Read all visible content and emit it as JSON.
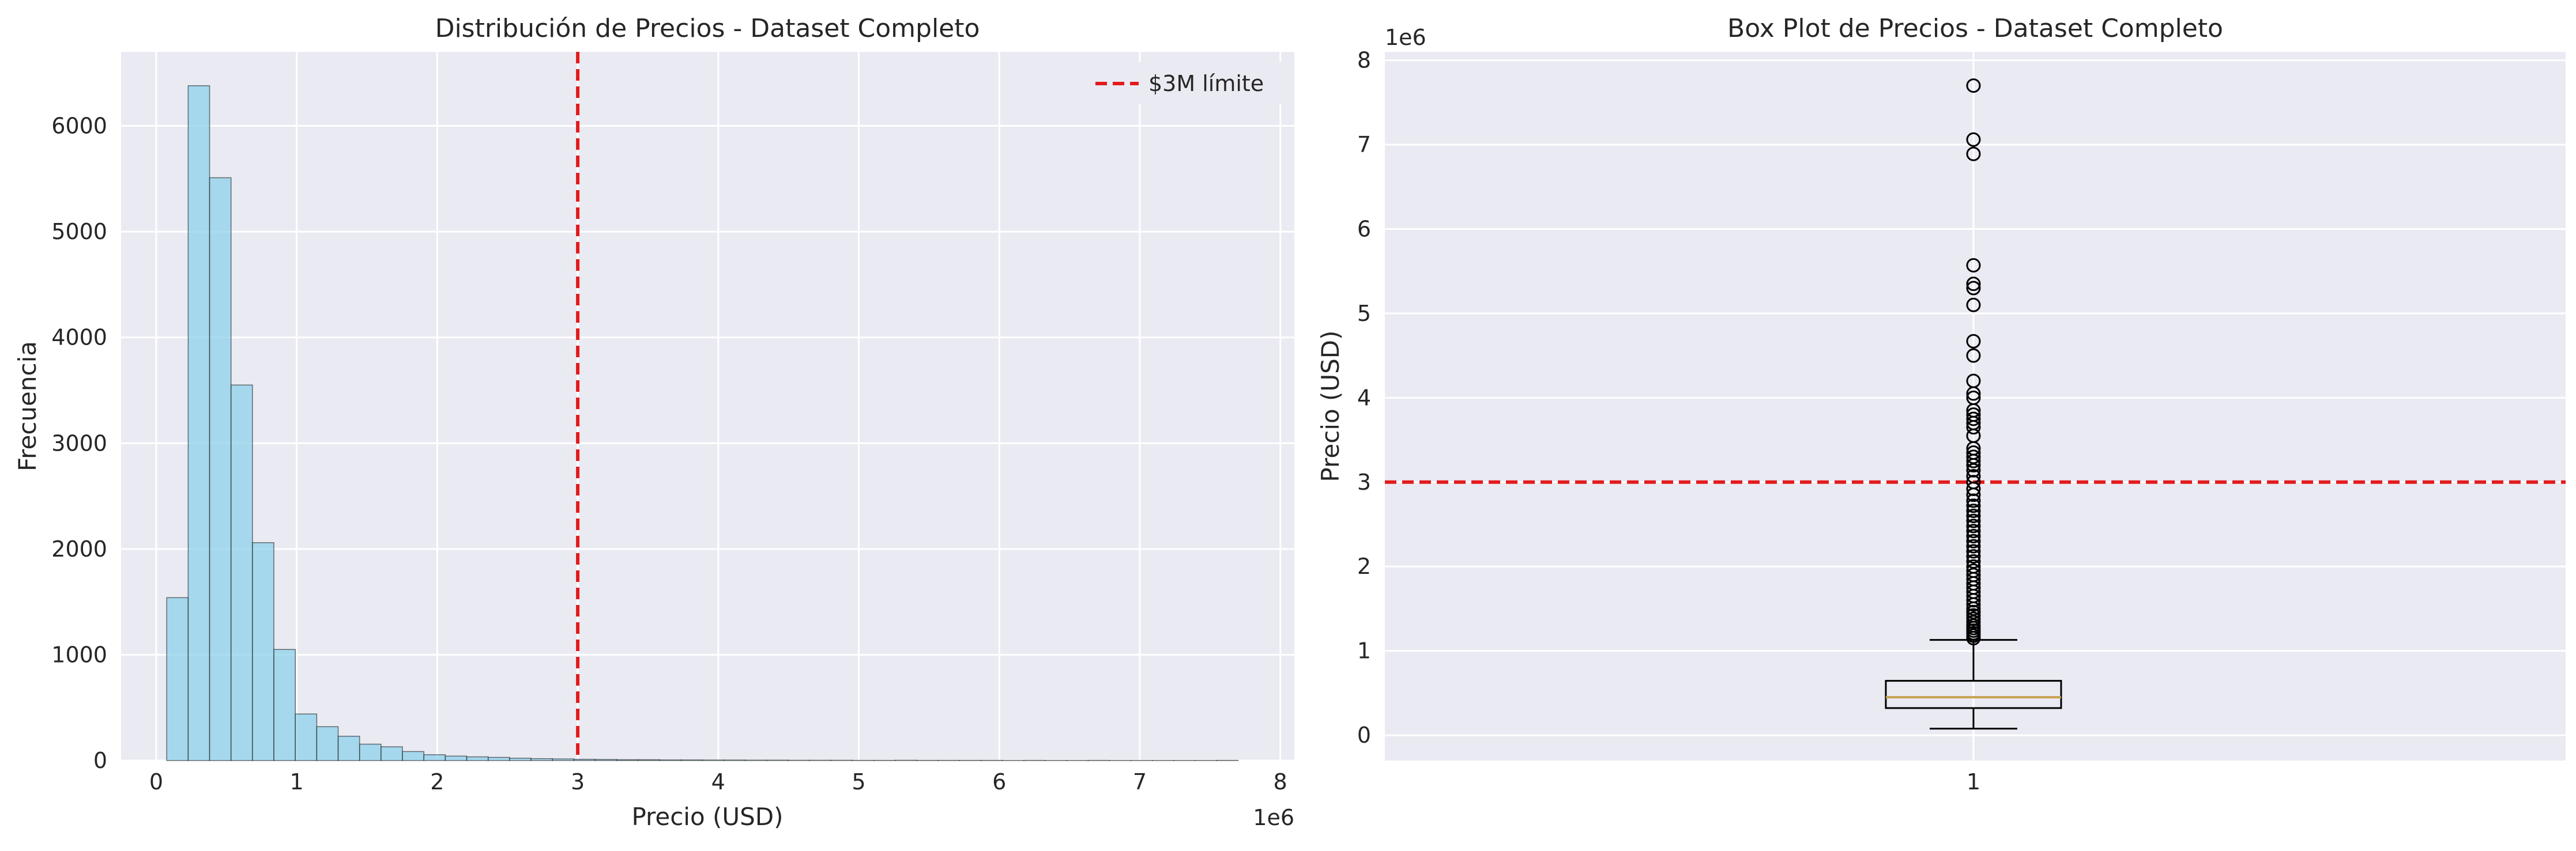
{
  "colors": {
    "axes_bg": "#eaeaf2",
    "grid": "#ffffff",
    "hist_fill": "#87ceeb",
    "hist_edge": "#1a1a1a",
    "threshold_line": "#e31a1c",
    "median_line": "#c8a050",
    "box_edge": "#000000"
  },
  "chart_data": [
    {
      "type": "bar",
      "subtype": "histogram",
      "title": "Distribución de Precios - Dataset Completo",
      "xlabel": "Precio (USD)",
      "ylabel": "Frecuencia",
      "x_offset_label": "1e6",
      "xlim": [
        -250000,
        8100000
      ],
      "ylim": [
        0,
        6700
      ],
      "xticks": [
        0,
        1000000,
        2000000,
        3000000,
        4000000,
        5000000,
        6000000,
        7000000,
        8000000
      ],
      "xtick_labels": [
        "0",
        "1",
        "2",
        "3",
        "4",
        "5",
        "6",
        "7",
        "8"
      ],
      "yticks": [
        0,
        1000,
        2000,
        3000,
        4000,
        5000,
        6000
      ],
      "ytick_labels": [
        "0",
        "1000",
        "2000",
        "3000",
        "4000",
        "5000",
        "6000"
      ],
      "bin_start": 75000,
      "bin_width": 152500,
      "values": [
        1540,
        6380,
        5510,
        3550,
        2060,
        1050,
        440,
        320,
        230,
        155,
        130,
        85,
        55,
        42,
        35,
        30,
        22,
        18,
        15,
        12,
        10,
        8,
        8,
        6,
        6,
        5,
        5,
        4,
        4,
        3,
        3,
        3,
        2,
        2,
        3,
        2,
        2,
        2,
        2,
        1,
        2,
        1,
        1,
        2,
        1,
        1,
        1,
        1,
        1,
        2
      ],
      "threshold": {
        "value": 3000000,
        "label": "$3M límite"
      },
      "legend_position": "top-right",
      "grid": true
    },
    {
      "type": "box",
      "title": "Box Plot de Precios - Dataset Completo",
      "ylabel": "Precio (USD)",
      "y_offset_label": "1e6",
      "ylim": [
        -300000,
        8100000
      ],
      "yticks": [
        0,
        1000000,
        2000000,
        3000000,
        4000000,
        5000000,
        6000000,
        7000000,
        8000000
      ],
      "ytick_labels": [
        "0",
        "1",
        "2",
        "3",
        "4",
        "5",
        "6",
        "7",
        "8"
      ],
      "xtick_labels": [
        "1"
      ],
      "whisker_low": 78000,
      "q1": 322000,
      "median": 450000,
      "q3": 645000,
      "whisker_high": 1130000,
      "outliers": [
        1150000,
        1180000,
        1210000,
        1240000,
        1270000,
        1300000,
        1340000,
        1380000,
        1420000,
        1460000,
        1500000,
        1550000,
        1600000,
        1650000,
        1700000,
        1750000,
        1800000,
        1850000,
        1900000,
        1950000,
        2000000,
        2060000,
        2120000,
        2180000,
        2240000,
        2300000,
        2360000,
        2420000,
        2480000,
        2540000,
        2600000,
        2660000,
        2720000,
        2780000,
        2850000,
        2920000,
        3000000,
        3070000,
        3140000,
        3200000,
        3250000,
        3300000,
        3350000,
        3400000,
        3550000,
        3650000,
        3700000,
        3750000,
        3800000,
        3850000,
        4000000,
        4050000,
        4200000,
        4500000,
        4670000,
        5100000,
        5300000,
        5350000,
        5570000,
        6890000,
        7060000,
        7700000
      ],
      "threshold": {
        "value": 3000000
      },
      "grid": true
    }
  ]
}
